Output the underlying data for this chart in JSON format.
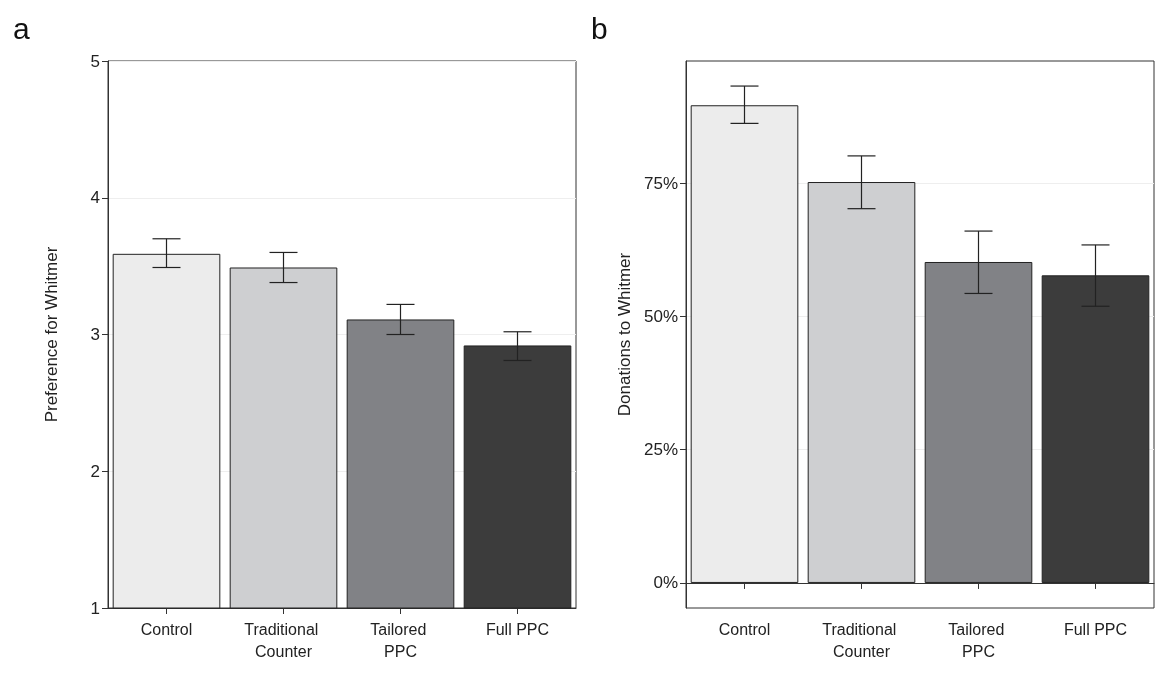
{
  "chart_data": [
    {
      "type": "bar",
      "title": "a",
      "ylabel": "Preference for Whitmer",
      "categories": [
        "Control",
        "Traditional Counter",
        "Tailored PPC",
        "Full PPC"
      ],
      "values": [
        3.59,
        3.49,
        3.11,
        2.92
      ],
      "colors": [
        "#ececec",
        "#cecfd1",
        "#818286",
        "#3c3c3c"
      ],
      "errors": [
        [
          3.49,
          3.7
        ],
        [
          3.38,
          3.6
        ],
        [
          3.0,
          3.22
        ],
        [
          2.81,
          3.02
        ]
      ],
      "ylim": [
        1,
        5
      ],
      "yticks": [
        1,
        2,
        3,
        4,
        5
      ],
      "grid": "y"
    },
    {
      "type": "bar",
      "title": "b",
      "ylabel": "Donations to Whitmer",
      "categories": [
        "Control",
        "Traditional Counter",
        "Tailored PPC",
        "Full PPC"
      ],
      "values": [
        89.6,
        75.2,
        60.2,
        57.7
      ],
      "colors": [
        "#ececec",
        "#cecfd1",
        "#818286",
        "#3c3c3c"
      ],
      "errors": [
        [
          86.2,
          93.2
        ],
        [
          70.2,
          80.1
        ],
        [
          54.3,
          66.0
        ],
        [
          51.9,
          63.4
        ]
      ],
      "ylim": [
        -4.7,
        97.9
      ],
      "yticks": [
        {
          "value": 0,
          "label": "0%"
        },
        {
          "value": 25,
          "label": "25%"
        },
        {
          "value": 50,
          "label": "50%"
        },
        {
          "value": 75,
          "label": "75%"
        }
      ],
      "grid": "y"
    }
  ]
}
